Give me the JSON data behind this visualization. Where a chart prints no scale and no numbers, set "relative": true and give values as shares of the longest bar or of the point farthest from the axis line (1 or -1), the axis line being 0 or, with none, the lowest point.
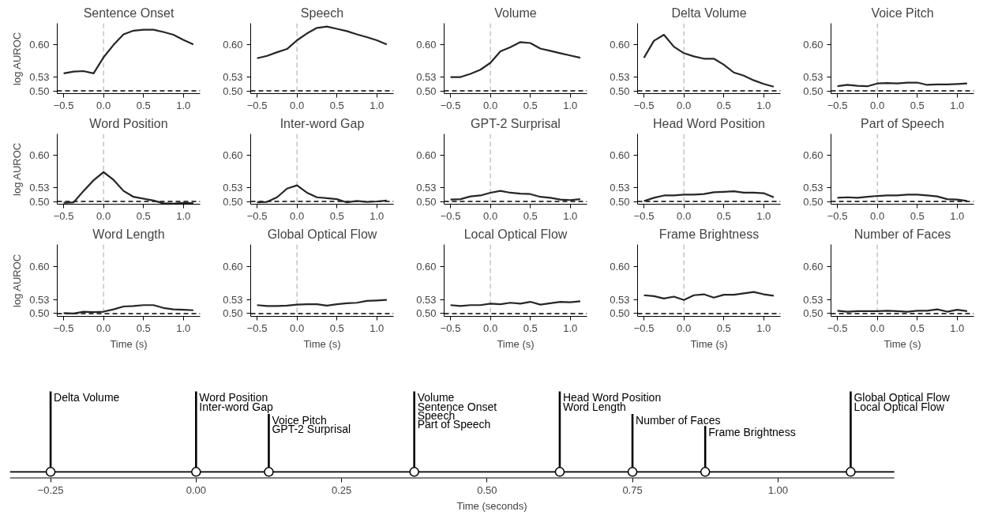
{
  "chart_data": [
    {
      "type": "line",
      "title": "Sentence Onset",
      "ylabel": "log AUROC",
      "x": [
        -0.5,
        -0.375,
        -0.25,
        -0.125,
        0,
        0.125,
        0.25,
        0.375,
        0.5,
        0.625,
        0.75,
        0.875,
        1.0,
        1.125
      ],
      "series": [
        {
          "color": "#262626",
          "values": [
            0.538,
            0.542,
            0.543,
            0.538,
            0.573,
            0.6,
            0.623,
            0.631,
            0.633,
            0.633,
            0.628,
            0.622,
            0.611,
            0.601
          ]
        }
      ],
      "xlim": [
        -0.58,
        1.21
      ],
      "ylim": [
        0.494,
        0.647
      ],
      "xticks": [
        {
          "value": -0.5,
          "label": "−0.5"
        },
        {
          "value": 0,
          "label": "0.0"
        },
        {
          "value": 0.5,
          "label": "0.5"
        },
        {
          "value": 1,
          "label": "1.0"
        }
      ],
      "yticks": [
        {
          "value": 0.5,
          "label": "0.50"
        },
        {
          "value": 0.53,
          "label": "0.53"
        },
        {
          "value": 0.6,
          "label": "0.60"
        }
      ],
      "ref_lines": [
        {
          "axis": "x",
          "value": 0,
          "color": "#c0c0c0",
          "line_style": "dashed"
        },
        {
          "axis": "y",
          "value": 0.5,
          "color": "#000000",
          "line_style": "dashed"
        }
      ]
    },
    {
      "type": "line",
      "title": "Speech",
      "x": [
        -0.5,
        -0.375,
        -0.25,
        -0.125,
        0,
        0.125,
        0.25,
        0.375,
        0.5,
        0.625,
        0.75,
        0.875,
        1.0,
        1.125
      ],
      "series": [
        {
          "color": "#262626",
          "values": [
            0.571,
            0.576,
            0.584,
            0.591,
            0.61,
            0.625,
            0.637,
            0.64,
            0.635,
            0.63,
            0.623,
            0.617,
            0.61,
            0.601
          ]
        }
      ],
      "xlim": [
        -0.58,
        1.21
      ],
      "ylim": [
        0.494,
        0.647
      ],
      "xticks": [
        {
          "value": -0.5,
          "label": "−0.5"
        },
        {
          "value": 0,
          "label": "0.0"
        },
        {
          "value": 0.5,
          "label": "0.5"
        },
        {
          "value": 1,
          "label": "1.0"
        }
      ],
      "yticks": [
        {
          "value": 0.5,
          "label": "0.50"
        },
        {
          "value": 0.53,
          "label": "0.53"
        },
        {
          "value": 0.6,
          "label": "0.60"
        }
      ],
      "ref_lines": [
        {
          "axis": "x",
          "value": 0,
          "color": "#c0c0c0",
          "line_style": "dashed"
        },
        {
          "axis": "y",
          "value": 0.5,
          "color": "#000000",
          "line_style": "dashed"
        }
      ]
    },
    {
      "type": "line",
      "title": "Volume",
      "x": [
        -0.5,
        -0.375,
        -0.25,
        -0.125,
        0,
        0.125,
        0.25,
        0.375,
        0.5,
        0.625,
        0.75,
        0.875,
        1.0,
        1.125
      ],
      "series": [
        {
          "color": "#262626",
          "values": [
            0.53,
            0.53,
            0.537,
            0.546,
            0.561,
            0.586,
            0.595,
            0.606,
            0.604,
            0.592,
            0.587,
            0.582,
            0.577,
            0.572
          ]
        }
      ],
      "xlim": [
        -0.58,
        1.21
      ],
      "ylim": [
        0.494,
        0.647
      ],
      "xticks": [
        {
          "value": -0.5,
          "label": "−0.5"
        },
        {
          "value": 0,
          "label": "0.0"
        },
        {
          "value": 0.5,
          "label": "0.5"
        },
        {
          "value": 1,
          "label": "1.0"
        }
      ],
      "yticks": [
        {
          "value": 0.5,
          "label": "0.50"
        },
        {
          "value": 0.53,
          "label": "0.53"
        },
        {
          "value": 0.6,
          "label": "0.60"
        }
      ],
      "ref_lines": [
        {
          "axis": "x",
          "value": 0,
          "color": "#c0c0c0",
          "line_style": "dashed"
        },
        {
          "axis": "y",
          "value": 0.5,
          "color": "#000000",
          "line_style": "dashed"
        }
      ]
    },
    {
      "type": "line",
      "title": "Delta Volume",
      "x": [
        -0.5,
        -0.375,
        -0.25,
        -0.125,
        0,
        0.125,
        0.25,
        0.375,
        0.5,
        0.625,
        0.75,
        0.875,
        1.0,
        1.125
      ],
      "series": [
        {
          "color": "#262626",
          "values": [
            0.572,
            0.609,
            0.622,
            0.596,
            0.582,
            0.575,
            0.57,
            0.57,
            0.557,
            0.54,
            0.533,
            0.523,
            0.515,
            0.509
          ]
        }
      ],
      "xlim": [
        -0.58,
        1.21
      ],
      "ylim": [
        0.494,
        0.647
      ],
      "xticks": [
        {
          "value": -0.5,
          "label": "−0.5"
        },
        {
          "value": 0,
          "label": "0.0"
        },
        {
          "value": 0.5,
          "label": "0.5"
        },
        {
          "value": 1,
          "label": "1.0"
        }
      ],
      "yticks": [
        {
          "value": 0.5,
          "label": "0.50"
        },
        {
          "value": 0.53,
          "label": "0.53"
        },
        {
          "value": 0.6,
          "label": "0.60"
        }
      ],
      "ref_lines": [
        {
          "axis": "x",
          "value": 0,
          "color": "#c0c0c0",
          "line_style": "dashed"
        },
        {
          "axis": "y",
          "value": 0.5,
          "color": "#000000",
          "line_style": "dashed"
        }
      ]
    },
    {
      "type": "line",
      "title": "Voice Pitch",
      "x": [
        -0.5,
        -0.375,
        -0.25,
        -0.125,
        0,
        0.125,
        0.25,
        0.375,
        0.5,
        0.625,
        0.75,
        0.875,
        1.0,
        1.125
      ],
      "series": [
        {
          "color": "#262626",
          "values": [
            0.51,
            0.513,
            0.511,
            0.51,
            0.516,
            0.517,
            0.516,
            0.518,
            0.518,
            0.513,
            0.514,
            0.514,
            0.515,
            0.516
          ]
        }
      ],
      "xlim": [
        -0.58,
        1.21
      ],
      "ylim": [
        0.494,
        0.647
      ],
      "xticks": [
        {
          "value": -0.5,
          "label": "−0.5"
        },
        {
          "value": 0,
          "label": "0.0"
        },
        {
          "value": 0.5,
          "label": "0.5"
        },
        {
          "value": 1,
          "label": "1.0"
        }
      ],
      "yticks": [
        {
          "value": 0.5,
          "label": "0.50"
        },
        {
          "value": 0.53,
          "label": "0.53"
        },
        {
          "value": 0.6,
          "label": "0.60"
        }
      ],
      "ref_lines": [
        {
          "axis": "x",
          "value": 0,
          "color": "#c0c0c0",
          "line_style": "dashed"
        },
        {
          "axis": "y",
          "value": 0.5,
          "color": "#000000",
          "line_style": "dashed"
        }
      ]
    },
    {
      "type": "line",
      "title": "Word Position",
      "ylabel": "log AUROC",
      "x": [
        -0.5,
        -0.375,
        -0.25,
        -0.125,
        0,
        0.125,
        0.25,
        0.375,
        0.5,
        0.625,
        0.75,
        0.875,
        1.0,
        1.125
      ],
      "series": [
        {
          "color": "#262626",
          "values": [
            0.497,
            0.498,
            0.523,
            0.546,
            0.564,
            0.547,
            0.523,
            0.51,
            0.506,
            0.502,
            0.496,
            0.495,
            0.497,
            0.496
          ],
          "lower": [
            0.495,
            0.496,
            0.521,
            0.543,
            0.561,
            0.545,
            0.521,
            0.508,
            0.504,
            0.5,
            0.494,
            0.494,
            0.495,
            0.494
          ],
          "upper": [
            0.499,
            0.5,
            0.525,
            0.549,
            0.567,
            0.549,
            0.525,
            0.512,
            0.508,
            0.504,
            0.498,
            0.497,
            0.499,
            0.498
          ]
        }
      ],
      "xlim": [
        -0.58,
        1.21
      ],
      "ylim": [
        0.494,
        0.647
      ],
      "xticks": [
        {
          "value": -0.5,
          "label": "−0.5"
        },
        {
          "value": 0,
          "label": "0.0"
        },
        {
          "value": 0.5,
          "label": "0.5"
        },
        {
          "value": 1,
          "label": "1.0"
        }
      ],
      "yticks": [
        {
          "value": 0.5,
          "label": "0.50"
        },
        {
          "value": 0.53,
          "label": "0.53"
        },
        {
          "value": 0.6,
          "label": "0.60"
        }
      ],
      "ref_lines": [
        {
          "axis": "x",
          "value": 0,
          "color": "#c0c0c0",
          "line_style": "dashed"
        },
        {
          "axis": "y",
          "value": 0.5,
          "color": "#000000",
          "line_style": "dashed"
        }
      ]
    },
    {
      "type": "line",
      "title": "Inter-word Gap",
      "x": [
        -0.5,
        -0.375,
        -0.25,
        -0.125,
        0,
        0.125,
        0.25,
        0.375,
        0.5,
        0.625,
        0.75,
        0.875,
        1.0,
        1.125
      ],
      "series": [
        {
          "color": "#262626",
          "values": [
            0.498,
            0.499,
            0.509,
            0.528,
            0.535,
            0.519,
            0.509,
            0.507,
            0.505,
            0.498,
            0.501,
            0.499,
            0.5,
            0.502
          ]
        }
      ],
      "xlim": [
        -0.58,
        1.21
      ],
      "ylim": [
        0.494,
        0.647
      ],
      "xticks": [
        {
          "value": -0.5,
          "label": "−0.5"
        },
        {
          "value": 0,
          "label": "0.0"
        },
        {
          "value": 0.5,
          "label": "0.5"
        },
        {
          "value": 1,
          "label": "1.0"
        }
      ],
      "yticks": [
        {
          "value": 0.5,
          "label": "0.50"
        },
        {
          "value": 0.53,
          "label": "0.53"
        },
        {
          "value": 0.6,
          "label": "0.60"
        }
      ],
      "ref_lines": [
        {
          "axis": "x",
          "value": 0,
          "color": "#c0c0c0",
          "line_style": "dashed"
        },
        {
          "axis": "y",
          "value": 0.5,
          "color": "#000000",
          "line_style": "dashed"
        }
      ]
    },
    {
      "type": "line",
      "title": "GPT-2 Surprisal",
      "x": [
        -0.5,
        -0.375,
        -0.25,
        -0.125,
        0,
        0.125,
        0.25,
        0.375,
        0.5,
        0.625,
        0.75,
        0.875,
        1.0,
        1.125
      ],
      "series": [
        {
          "color": "#262626",
          "values": [
            0.504,
            0.505,
            0.511,
            0.513,
            0.519,
            0.523,
            0.519,
            0.517,
            0.516,
            0.51,
            0.508,
            0.504,
            0.503,
            0.505
          ]
        }
      ],
      "xlim": [
        -0.58,
        1.21
      ],
      "ylim": [
        0.494,
        0.647
      ],
      "xticks": [
        {
          "value": -0.5,
          "label": "−0.5"
        },
        {
          "value": 0,
          "label": "0.0"
        },
        {
          "value": 0.5,
          "label": "0.5"
        },
        {
          "value": 1,
          "label": "1.0"
        }
      ],
      "yticks": [
        {
          "value": 0.5,
          "label": "0.50"
        },
        {
          "value": 0.53,
          "label": "0.53"
        },
        {
          "value": 0.6,
          "label": "0.60"
        }
      ],
      "ref_lines": [
        {
          "axis": "x",
          "value": 0,
          "color": "#c0c0c0",
          "line_style": "dashed"
        },
        {
          "axis": "y",
          "value": 0.5,
          "color": "#000000",
          "line_style": "dashed"
        }
      ]
    },
    {
      "type": "line",
      "title": "Head Word Position",
      "x": [
        -0.5,
        -0.375,
        -0.25,
        -0.125,
        0,
        0.125,
        0.25,
        0.375,
        0.5,
        0.625,
        0.75,
        0.875,
        1.0,
        1.125
      ],
      "series": [
        {
          "color": "#262626",
          "values": [
            0.501,
            0.508,
            0.513,
            0.513,
            0.515,
            0.515,
            0.516,
            0.52,
            0.521,
            0.522,
            0.519,
            0.519,
            0.518,
            0.509
          ]
        }
      ],
      "xlim": [
        -0.58,
        1.21
      ],
      "ylim": [
        0.494,
        0.647
      ],
      "xticks": [
        {
          "value": -0.5,
          "label": "−0.5"
        },
        {
          "value": 0,
          "label": "0.0"
        },
        {
          "value": 0.5,
          "label": "0.5"
        },
        {
          "value": 1,
          "label": "1.0"
        }
      ],
      "yticks": [
        {
          "value": 0.5,
          "label": "0.50"
        },
        {
          "value": 0.53,
          "label": "0.53"
        },
        {
          "value": 0.6,
          "label": "0.60"
        }
      ],
      "ref_lines": [
        {
          "axis": "x",
          "value": 0,
          "color": "#c0c0c0",
          "line_style": "dashed"
        },
        {
          "axis": "y",
          "value": 0.5,
          "color": "#000000",
          "line_style": "dashed"
        }
      ]
    },
    {
      "type": "line",
      "title": "Part of Speech",
      "x": [
        -0.5,
        -0.375,
        -0.25,
        -0.125,
        0,
        0.125,
        0.25,
        0.375,
        0.5,
        0.625,
        0.75,
        0.875,
        1.0,
        1.125
      ],
      "series": [
        {
          "color": "#262626",
          "values": [
            0.508,
            0.509,
            0.508,
            0.51,
            0.512,
            0.513,
            0.513,
            0.515,
            0.515,
            0.513,
            0.511,
            0.505,
            0.504,
            0.501
          ]
        }
      ],
      "xlim": [
        -0.58,
        1.21
      ],
      "ylim": [
        0.494,
        0.647
      ],
      "xticks": [
        {
          "value": -0.5,
          "label": "−0.5"
        },
        {
          "value": 0,
          "label": "0.0"
        },
        {
          "value": 0.5,
          "label": "0.5"
        },
        {
          "value": 1,
          "label": "1.0"
        }
      ],
      "yticks": [
        {
          "value": 0.5,
          "label": "0.50"
        },
        {
          "value": 0.53,
          "label": "0.53"
        },
        {
          "value": 0.6,
          "label": "0.60"
        }
      ],
      "ref_lines": [
        {
          "axis": "x",
          "value": 0,
          "color": "#c0c0c0",
          "line_style": "dashed"
        },
        {
          "axis": "y",
          "value": 0.5,
          "color": "#000000",
          "line_style": "dashed"
        }
      ]
    },
    {
      "type": "line",
      "title": "Word Length",
      "xlabel": "Time (s)",
      "ylabel": "log AUROC",
      "x": [
        -0.5,
        -0.375,
        -0.25,
        -0.125,
        0,
        0.125,
        0.25,
        0.375,
        0.5,
        0.625,
        0.75,
        0.875,
        1.0,
        1.125
      ],
      "series": [
        {
          "color": "#262626",
          "values": [
            0.501,
            0.5,
            0.504,
            0.503,
            0.504,
            0.509,
            0.515,
            0.516,
            0.518,
            0.518,
            0.512,
            0.509,
            0.508,
            0.507
          ]
        }
      ],
      "xlim": [
        -0.58,
        1.21
      ],
      "ylim": [
        0.494,
        0.647
      ],
      "xticks": [
        {
          "value": -0.5,
          "label": "−0.5"
        },
        {
          "value": 0,
          "label": "0.0"
        },
        {
          "value": 0.5,
          "label": "0.5"
        },
        {
          "value": 1,
          "label": "1.0"
        }
      ],
      "yticks": [
        {
          "value": 0.5,
          "label": "0.50"
        },
        {
          "value": 0.53,
          "label": "0.53"
        },
        {
          "value": 0.6,
          "label": "0.60"
        }
      ],
      "ref_lines": [
        {
          "axis": "x",
          "value": 0,
          "color": "#c0c0c0",
          "line_style": "dashed"
        },
        {
          "axis": "y",
          "value": 0.5,
          "color": "#000000",
          "line_style": "dashed"
        }
      ]
    },
    {
      "type": "line",
      "title": "Global Optical Flow",
      "xlabel": "Time (s)",
      "x": [
        -0.5,
        -0.375,
        -0.25,
        -0.125,
        0,
        0.125,
        0.25,
        0.375,
        0.5,
        0.625,
        0.75,
        0.875,
        1.0,
        1.125
      ],
      "series": [
        {
          "color": "#262626",
          "values": [
            0.518,
            0.516,
            0.516,
            0.517,
            0.519,
            0.52,
            0.52,
            0.517,
            0.52,
            0.522,
            0.523,
            0.527,
            0.528,
            0.529
          ]
        }
      ],
      "xlim": [
        -0.58,
        1.21
      ],
      "ylim": [
        0.494,
        0.647
      ],
      "xticks": [
        {
          "value": -0.5,
          "label": "−0.5"
        },
        {
          "value": 0,
          "label": "0.0"
        },
        {
          "value": 0.5,
          "label": "0.5"
        },
        {
          "value": 1,
          "label": "1.0"
        }
      ],
      "yticks": [
        {
          "value": 0.5,
          "label": "0.50"
        },
        {
          "value": 0.53,
          "label": "0.53"
        },
        {
          "value": 0.6,
          "label": "0.60"
        }
      ],
      "ref_lines": [
        {
          "axis": "x",
          "value": 0,
          "color": "#c0c0c0",
          "line_style": "dashed"
        },
        {
          "axis": "y",
          "value": 0.5,
          "color": "#000000",
          "line_style": "dashed"
        }
      ]
    },
    {
      "type": "line",
      "title": "Local Optical Flow",
      "xlabel": "Time (s)",
      "x": [
        -0.5,
        -0.375,
        -0.25,
        -0.125,
        0,
        0.125,
        0.25,
        0.375,
        0.5,
        0.625,
        0.75,
        0.875,
        1.0,
        1.125
      ],
      "series": [
        {
          "color": "#262626",
          "values": [
            0.518,
            0.516,
            0.518,
            0.518,
            0.521,
            0.52,
            0.523,
            0.521,
            0.525,
            0.519,
            0.522,
            0.525,
            0.524,
            0.526
          ]
        }
      ],
      "xlim": [
        -0.58,
        1.21
      ],
      "ylim": [
        0.494,
        0.647
      ],
      "xticks": [
        {
          "value": -0.5,
          "label": "−0.5"
        },
        {
          "value": 0,
          "label": "0.0"
        },
        {
          "value": 0.5,
          "label": "0.5"
        },
        {
          "value": 1,
          "label": "1.0"
        }
      ],
      "yticks": [
        {
          "value": 0.5,
          "label": "0.50"
        },
        {
          "value": 0.53,
          "label": "0.53"
        },
        {
          "value": 0.6,
          "label": "0.60"
        }
      ],
      "ref_lines": [
        {
          "axis": "x",
          "value": 0,
          "color": "#c0c0c0",
          "line_style": "dashed"
        },
        {
          "axis": "y",
          "value": 0.5,
          "color": "#000000",
          "line_style": "dashed"
        }
      ]
    },
    {
      "type": "line",
      "title": "Frame Brightness",
      "xlabel": "Time (s)",
      "x": [
        -0.5,
        -0.375,
        -0.25,
        -0.125,
        0,
        0.125,
        0.25,
        0.375,
        0.5,
        0.625,
        0.75,
        0.875,
        1.0,
        1.125
      ],
      "series": [
        {
          "color": "#262626",
          "values": [
            0.539,
            0.537,
            0.532,
            0.536,
            0.529,
            0.539,
            0.541,
            0.534,
            0.54,
            0.54,
            0.543,
            0.546,
            0.541,
            0.538
          ]
        }
      ],
      "xlim": [
        -0.58,
        1.21
      ],
      "ylim": [
        0.494,
        0.647
      ],
      "xticks": [
        {
          "value": -0.5,
          "label": "−0.5"
        },
        {
          "value": 0,
          "label": "0.0"
        },
        {
          "value": 0.5,
          "label": "0.5"
        },
        {
          "value": 1,
          "label": "1.0"
        }
      ],
      "yticks": [
        {
          "value": 0.5,
          "label": "0.50"
        },
        {
          "value": 0.53,
          "label": "0.53"
        },
        {
          "value": 0.6,
          "label": "0.60"
        }
      ],
      "ref_lines": [
        {
          "axis": "x",
          "value": 0,
          "color": "#c0c0c0",
          "line_style": "dashed"
        },
        {
          "axis": "y",
          "value": 0.5,
          "color": "#000000",
          "line_style": "dashed"
        }
      ]
    },
    {
      "type": "line",
      "title": "Number of Faces",
      "xlabel": "Time (s)",
      "x": [
        -0.5,
        -0.375,
        -0.25,
        -0.125,
        0,
        0.125,
        0.25,
        0.375,
        0.5,
        0.625,
        0.75,
        0.875,
        1.0,
        1.125
      ],
      "series": [
        {
          "color": "#262626",
          "values": [
            0.506,
            0.504,
            0.505,
            0.505,
            0.505,
            0.506,
            0.505,
            0.504,
            0.506,
            0.506,
            0.509,
            0.504,
            0.508,
            0.505
          ]
        }
      ],
      "xlim": [
        -0.58,
        1.21
      ],
      "ylim": [
        0.494,
        0.647
      ],
      "xticks": [
        {
          "value": -0.5,
          "label": "−0.5"
        },
        {
          "value": 0,
          "label": "0.0"
        },
        {
          "value": 0.5,
          "label": "0.5"
        },
        {
          "value": 1,
          "label": "1.0"
        }
      ],
      "yticks": [
        {
          "value": 0.5,
          "label": "0.50"
        },
        {
          "value": 0.53,
          "label": "0.53"
        },
        {
          "value": 0.6,
          "label": "0.60"
        }
      ],
      "ref_lines": [
        {
          "axis": "x",
          "value": 0,
          "color": "#c0c0c0",
          "line_style": "dashed"
        },
        {
          "axis": "y",
          "value": 0.5,
          "color": "#000000",
          "line_style": "dashed"
        }
      ]
    },
    {
      "type": "bar",
      "relative": true,
      "xlabel": "Time (seconds)",
      "x": [
        -0.25,
        0,
        0.125,
        0.375,
        0.625,
        0.75,
        0.875,
        1.125
      ],
      "series": [
        {
          "type": "bar",
          "color": "#000000",
          "values": [
            1,
            1,
            0.72,
            1,
            1,
            0.72,
            0.57,
            1
          ]
        },
        {
          "type": "scatter",
          "color": "#000000",
          "values": [
            0,
            0,
            0,
            0,
            0,
            0,
            0,
            0
          ]
        }
      ],
      "marker": "circle",
      "tick_labels": "x",
      "xlim": [
        -0.32,
        1.2
      ],
      "xticks": [
        {
          "value": -0.25,
          "label": "−0.25"
        },
        {
          "value": 0,
          "label": "0.00"
        },
        {
          "value": 0.25,
          "label": "0.25"
        },
        {
          "value": 0.5,
          "label": "0.50"
        },
        {
          "value": 0.75,
          "label": "0.75"
        },
        {
          "value": 1,
          "label": "1.00"
        }
      ],
      "annotations": [
        {
          "text": "Delta Volume",
          "x": -0.25,
          "y": 1
        },
        {
          "text": "Word Position",
          "x": 0,
          "y": 1
        },
        {
          "text": "Inter-word Gap",
          "x": 0,
          "y": 0.89
        },
        {
          "text": "Voice Pitch",
          "x": 0.125,
          "y": 0.72
        },
        {
          "text": "GPT-2 Surprisal",
          "x": 0.125,
          "y": 0.61
        },
        {
          "text": "Volume",
          "x": 0.375,
          "y": 1
        },
        {
          "text": "Sentence Onset",
          "x": 0.375,
          "y": 0.89
        },
        {
          "text": "Speech",
          "x": 0.375,
          "y": 0.78
        },
        {
          "text": "Part of Speech",
          "x": 0.375,
          "y": 0.67
        },
        {
          "text": "Head Word Position",
          "x": 0.625,
          "y": 1
        },
        {
          "text": "Word Length",
          "x": 0.625,
          "y": 0.89
        },
        {
          "text": "Number of Faces",
          "x": 0.75,
          "y": 0.72
        },
        {
          "text": "Frame Brightness",
          "x": 0.875,
          "y": 0.57
        },
        {
          "text": "Global Optical Flow",
          "x": 1.125,
          "y": 1
        },
        {
          "text": "Local Optical Flow",
          "x": 1.125,
          "y": 0.89
        }
      ]
    }
  ]
}
